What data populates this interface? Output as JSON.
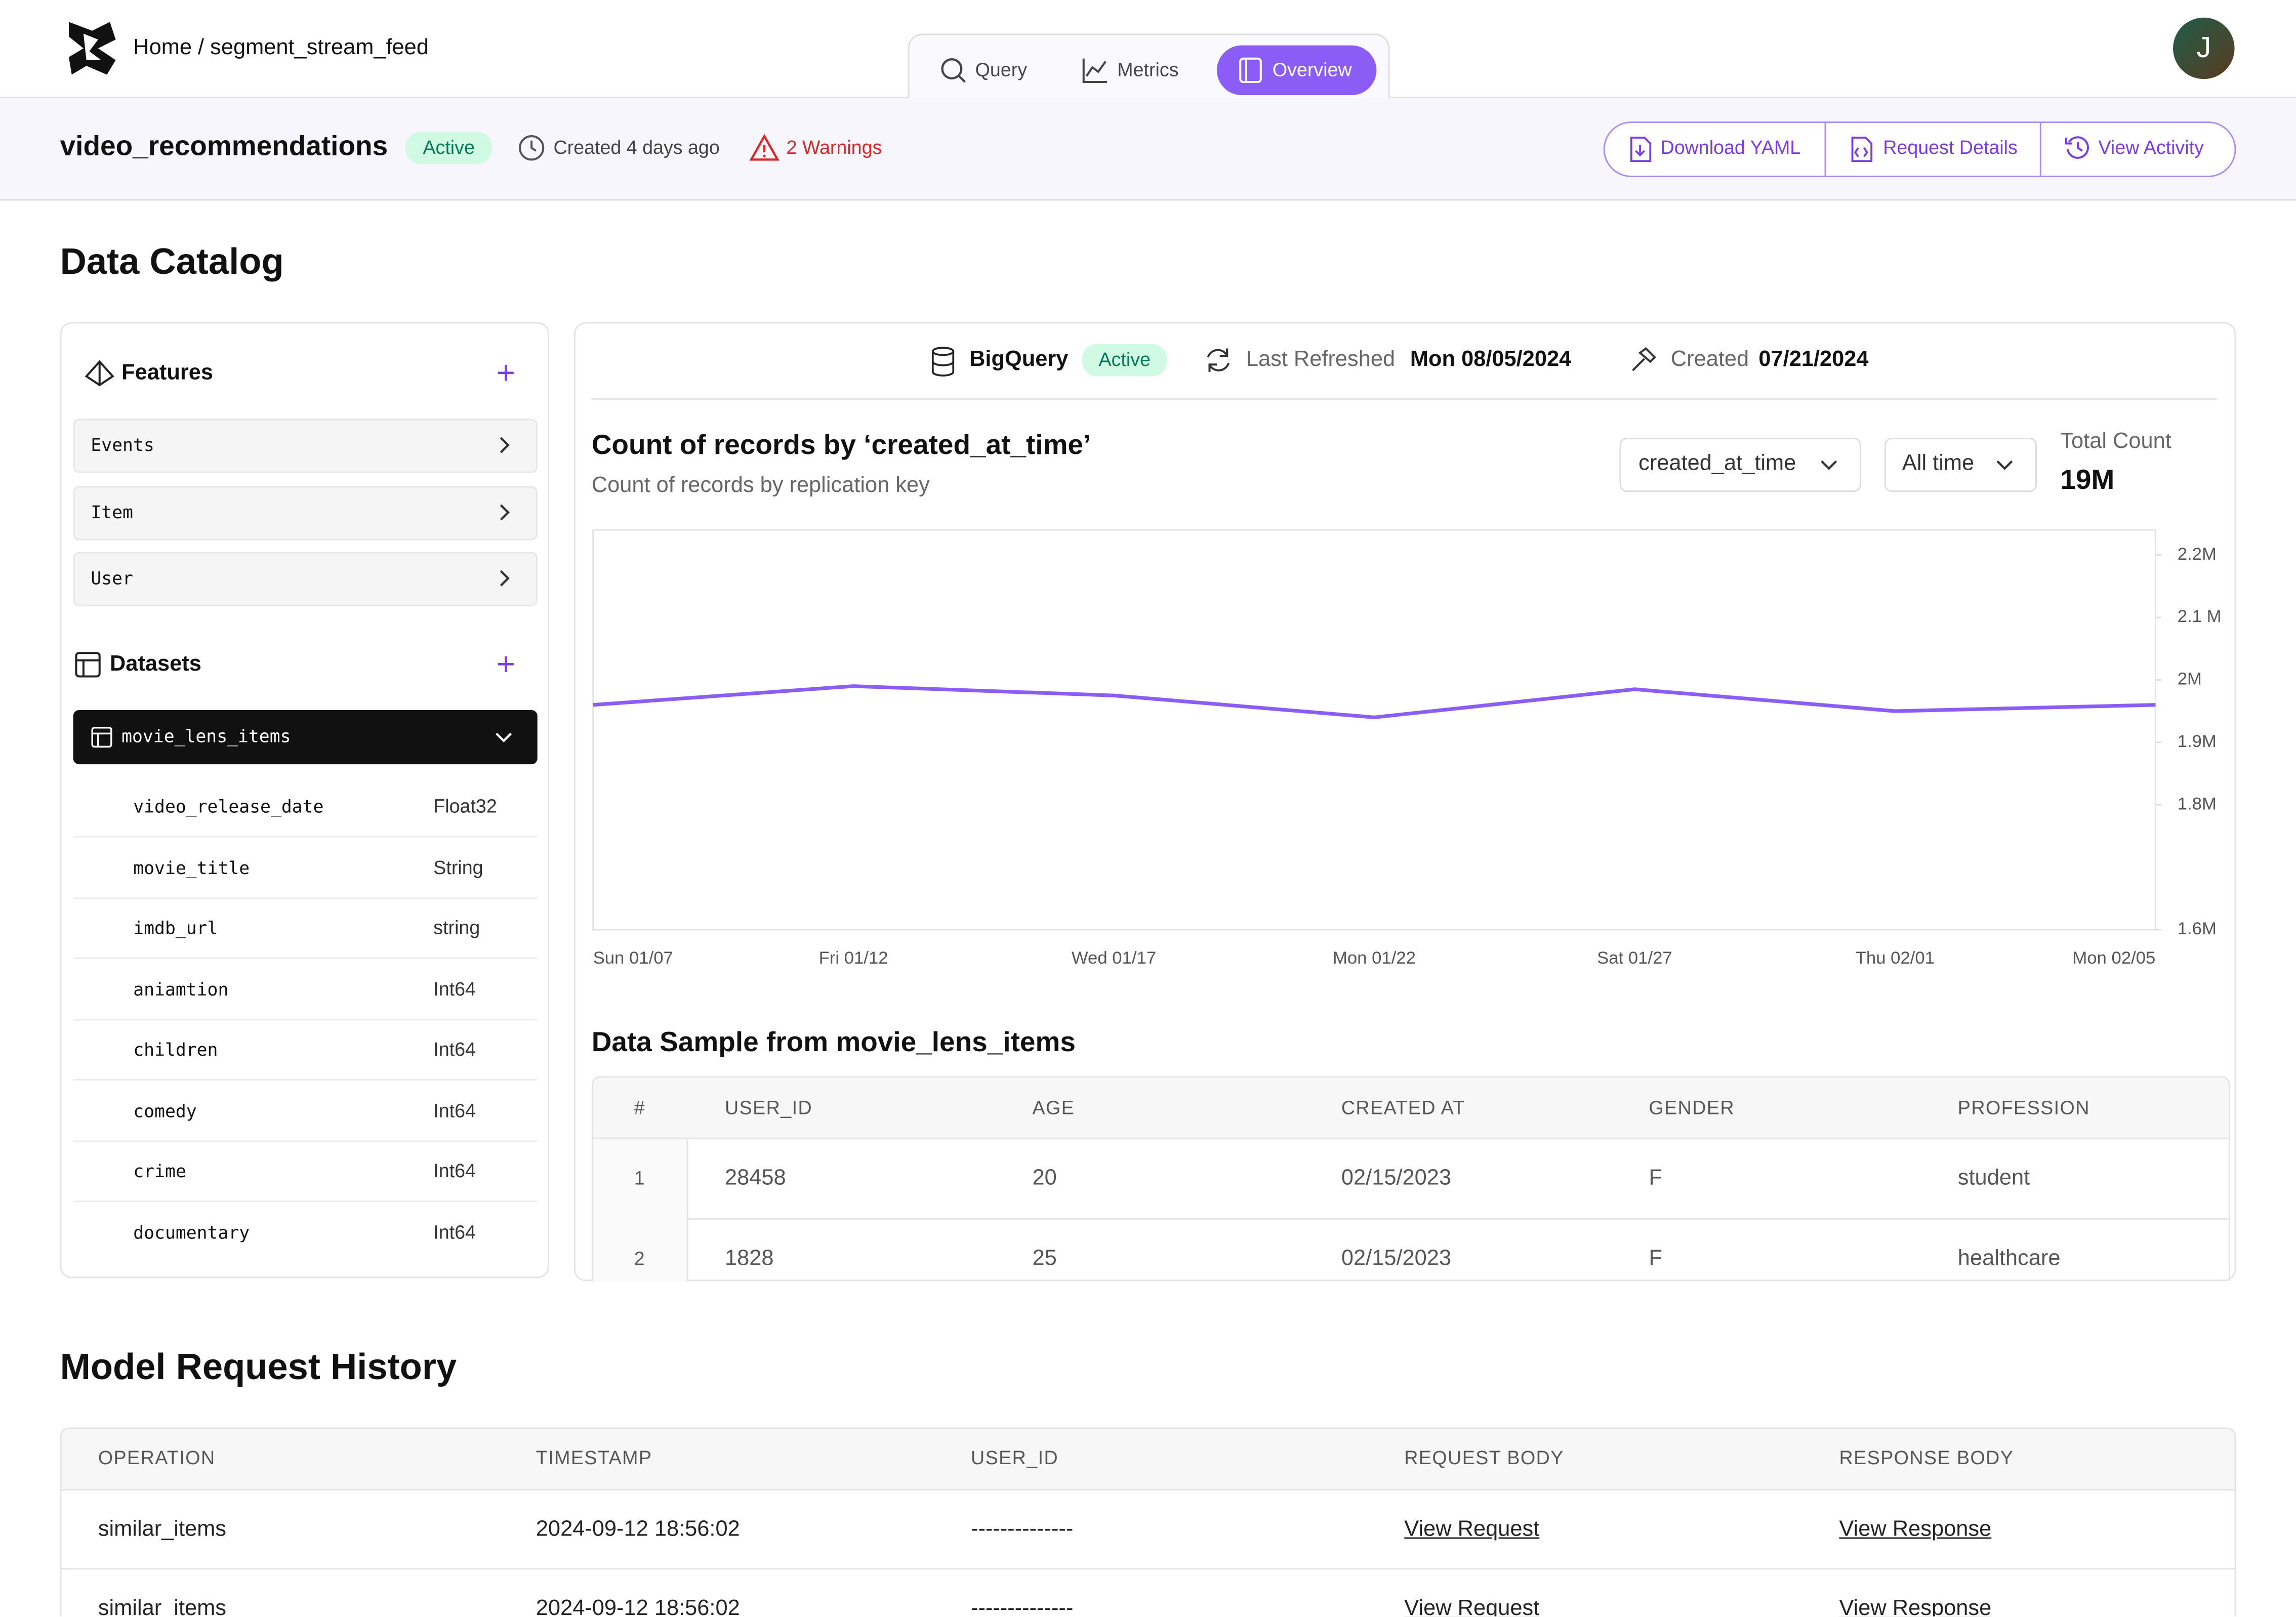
{
  "header": {
    "breadcrumb": "Home / segment_stream_feed",
    "tabs": [
      "Query",
      "Metrics",
      "Overview"
    ],
    "avatar": "J"
  },
  "subheader": {
    "name": "video_recommendations",
    "status": "Active",
    "created": "Created 4 days ago",
    "warnings": "2 Warnings",
    "actions": [
      "Download YAML",
      "Request Details",
      "View Activity"
    ]
  },
  "catalog": {
    "title": "Data Catalog",
    "features_title": "Features",
    "features": [
      "Events",
      "Item",
      "User"
    ],
    "datasets_title": "Datasets",
    "dataset": "movie_lens_items",
    "columns": [
      [
        "video_release_date",
        "Float32"
      ],
      [
        "movie_title",
        "String"
      ],
      [
        "imdb_url",
        "string"
      ],
      [
        "aniamtion",
        "Int64"
      ],
      [
        "children",
        "Int64"
      ],
      [
        "comedy",
        "Int64"
      ],
      [
        "crime",
        "Int64"
      ],
      [
        "documentary",
        "Int64"
      ]
    ]
  },
  "source": {
    "name": "BigQuery",
    "status": "Active",
    "refreshed_label": "Last Refreshed",
    "refreshed": "Mon 08/05/2024",
    "created_label": "Created",
    "created": "07/21/2024"
  },
  "chart": {
    "type": "line",
    "title": "Count of records by ‘created_at_time’",
    "subtitle": "Count of records by replication key",
    "key_select": "created_at_time",
    "range_select": "All time",
    "total_label": "Total Count",
    "total": "19M",
    "categories": [
      "Sun 01/07",
      "Fri 01/12",
      "Wed 01/17",
      "Mon 01/22",
      "Sat 01/27",
      "Thu 02/01",
      "Mon 02/05"
    ],
    "values": [
      1960000,
      1990000,
      1975000,
      1940000,
      1985000,
      1950000,
      1960000
    ],
    "color": "#8b5cf6",
    "ylim": [
      1600000,
      2240000
    ],
    "yticks": [
      {
        "value": 2200000,
        "label": "2.2M"
      },
      {
        "value": 2100000,
        "label": "2.1 M"
      },
      {
        "value": 2000000,
        "label": "2M"
      },
      {
        "value": 1900000,
        "label": "1.9M"
      },
      {
        "value": 1800000,
        "label": "1.8M"
      },
      {
        "value": 1600000,
        "label": "1.6M"
      }
    ]
  },
  "sample": {
    "title": "Data Sample from movie_lens_items",
    "columns": [
      "#",
      "USER_ID",
      "AGE",
      "CREATED AT",
      "GENDER",
      "PROFESSION"
    ],
    "rows": [
      [
        1,
        28458,
        20,
        "02/15/2023",
        "F",
        "student"
      ],
      [
        2,
        1828,
        25,
        "02/15/2023",
        "F",
        "healthcare"
      ]
    ]
  },
  "history": {
    "title": "Model Request History",
    "columns": [
      "OPERATION",
      "TIMESTAMP",
      "USER_ID",
      "REQUEST BODY",
      "RESPONSE BODY"
    ],
    "rows": [
      [
        "similar_items",
        "2024-09-12 18:56:02",
        "--------------",
        "View Request",
        "View Response"
      ],
      [
        "similar_items",
        "2024-09-12 18:56:02",
        "--------------",
        "View Request",
        "View Response"
      ]
    ]
  }
}
